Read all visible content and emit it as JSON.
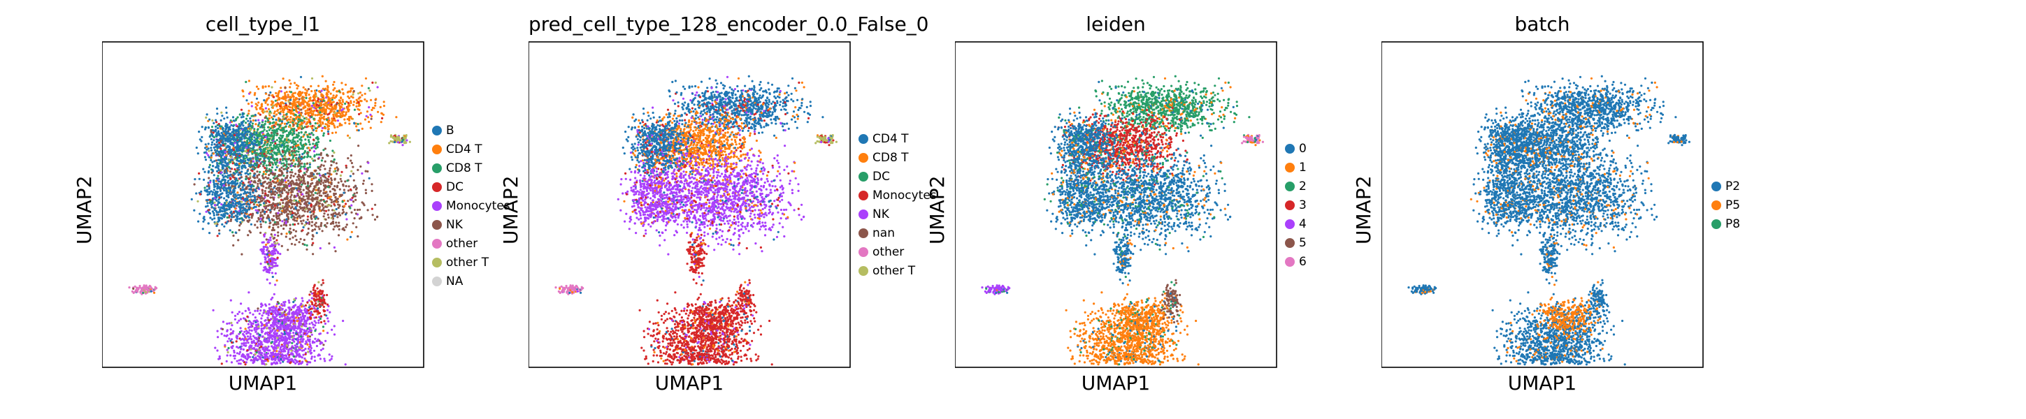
{
  "chart_data": [
    {
      "type": "scatter",
      "title": "cell_type_l1",
      "xlabel": "UMAP1",
      "ylabel": "UMAP2",
      "legend": [
        {
          "label": "B",
          "color": "#1f77b4"
        },
        {
          "label": "CD4 T",
          "color": "#ff7f0e"
        },
        {
          "label": "CD8 T",
          "color": "#279e68"
        },
        {
          "label": "DC",
          "color": "#d62728"
        },
        {
          "label": "Monocytes",
          "color": "#aa40fc"
        },
        {
          "label": "NK",
          "color": "#8c564b"
        },
        {
          "label": "other",
          "color": "#e377c2"
        },
        {
          "label": "other T",
          "color": "#b5bd61"
        },
        {
          "label": "NA",
          "color": "#d3d3d3"
        }
      ],
      "legend_position": "right",
      "grid": false
    },
    {
      "type": "scatter",
      "title": "pred_cell_type_128_encoder_0.0_False_0",
      "xlabel": "UMAP1",
      "ylabel": "UMAP2",
      "legend": [
        {
          "label": "CD4 T",
          "color": "#1f77b4"
        },
        {
          "label": "CD8 T",
          "color": "#ff7f0e"
        },
        {
          "label": "DC",
          "color": "#279e68"
        },
        {
          "label": "Monocytes",
          "color": "#d62728"
        },
        {
          "label": "NK",
          "color": "#aa40fc"
        },
        {
          "label": "nan",
          "color": "#8c564b"
        },
        {
          "label": "other",
          "color": "#e377c2"
        },
        {
          "label": "other T",
          "color": "#b5bd61"
        }
      ],
      "legend_position": "right",
      "grid": false
    },
    {
      "type": "scatter",
      "title": "leiden",
      "xlabel": "UMAP1",
      "ylabel": "UMAP2",
      "legend": [
        {
          "label": "0",
          "color": "#1f77b4"
        },
        {
          "label": "1",
          "color": "#ff7f0e"
        },
        {
          "label": "2",
          "color": "#279e68"
        },
        {
          "label": "3",
          "color": "#d62728"
        },
        {
          "label": "4",
          "color": "#aa40fc"
        },
        {
          "label": "5",
          "color": "#8c564b"
        },
        {
          "label": "6",
          "color": "#e377c2"
        }
      ],
      "legend_position": "right",
      "grid": false
    },
    {
      "type": "scatter",
      "title": "batch",
      "xlabel": "UMAP1",
      "ylabel": "UMAP2",
      "legend": [
        {
          "label": "P2",
          "color": "#1f77b4"
        },
        {
          "label": "P5",
          "color": "#ff7f0e"
        },
        {
          "label": "P8",
          "color": "#279e68"
        }
      ],
      "legend_position": "right",
      "grid": false
    }
  ]
}
